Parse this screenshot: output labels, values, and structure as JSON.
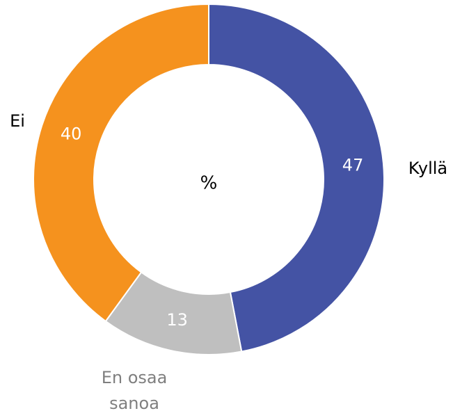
{
  "chart_data": {
    "type": "pie",
    "center_label": "%",
    "categories": [
      "Kyllä",
      "En osaa sanoa",
      "Ei"
    ],
    "values": [
      47,
      13,
      40
    ],
    "colors": [
      "#4453a4",
      "#bfbfbf",
      "#f5921e"
    ]
  }
}
